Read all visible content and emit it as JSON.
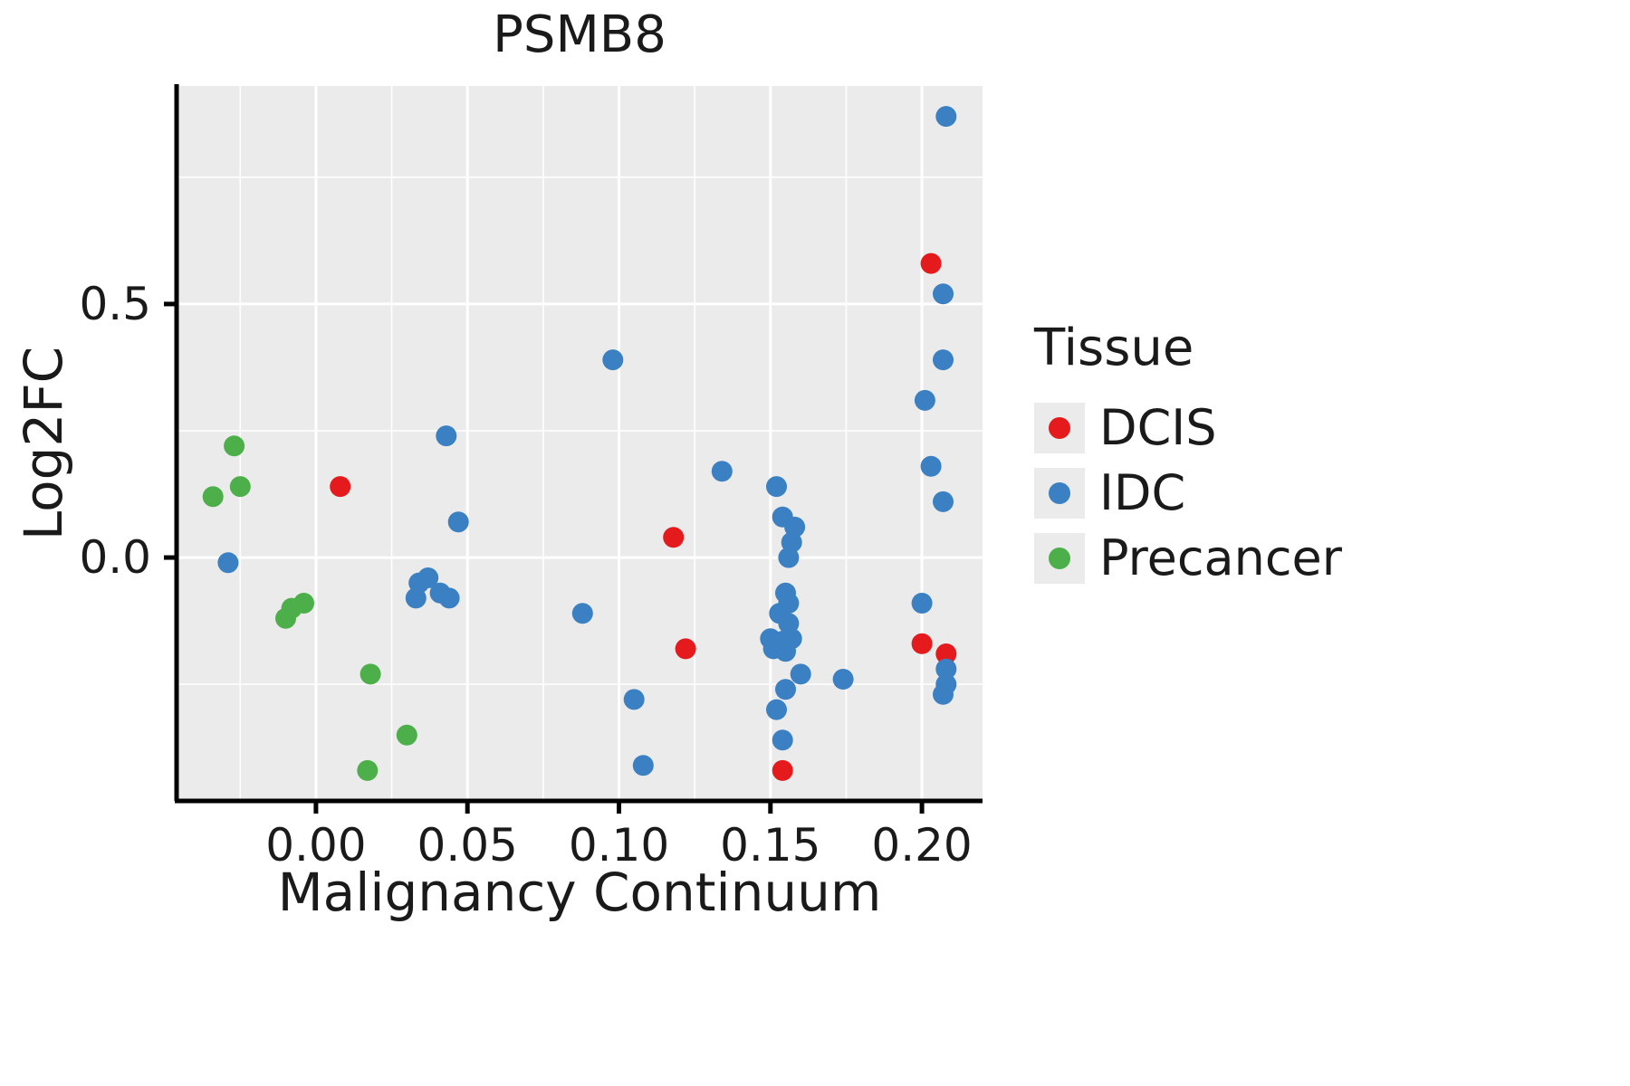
{
  "chart_data": {
    "type": "scatter",
    "title": "PSMB8",
    "xlabel": "Malignancy Continuum",
    "ylabel": "Log2FC",
    "xlim": [
      -0.046,
      0.22
    ],
    "ylim": [
      -0.48,
      0.93
    ],
    "x_ticks": [
      0.0,
      0.05,
      0.1,
      0.15,
      0.2
    ],
    "x_tick_labels": [
      "0.00",
      "0.05",
      "0.10",
      "0.15",
      "0.20"
    ],
    "x_minor_ticks": [
      -0.025,
      0.025,
      0.075,
      0.125,
      0.175
    ],
    "y_ticks": [
      0.0,
      0.5
    ],
    "y_tick_labels": [
      "0.0",
      "0.5"
    ],
    "y_minor_ticks": [
      -0.25,
      0.25,
      0.75
    ],
    "grid": true,
    "panel_background": "#ebebeb",
    "grid_color": "#ffffff",
    "axis_color": "#000000",
    "legend": {
      "title": "Tissue",
      "position": "right"
    },
    "series": [
      {
        "name": "DCIS",
        "color": "#e41a1c",
        "points": [
          [
            0.008,
            0.14
          ],
          [
            0.118,
            0.04
          ],
          [
            0.122,
            -0.18
          ],
          [
            0.154,
            -0.42
          ],
          [
            0.203,
            0.58
          ],
          [
            0.2,
            -0.17
          ],
          [
            0.208,
            -0.19
          ]
        ]
      },
      {
        "name": "IDC",
        "color": "#3a80c2",
        "points": [
          [
            -0.029,
            -0.01
          ],
          [
            0.043,
            0.24
          ],
          [
            0.047,
            0.07
          ],
          [
            0.033,
            -0.08
          ],
          [
            0.034,
            -0.05
          ],
          [
            0.037,
            -0.04
          ],
          [
            0.041,
            -0.07
          ],
          [
            0.044,
            -0.08
          ],
          [
            0.088,
            -0.11
          ],
          [
            0.098,
            0.39
          ],
          [
            0.105,
            -0.28
          ],
          [
            0.108,
            -0.41
          ],
          [
            0.134,
            0.17
          ],
          [
            0.152,
            0.14
          ],
          [
            0.154,
            0.08
          ],
          [
            0.158,
            0.06
          ],
          [
            0.157,
            0.03
          ],
          [
            0.156,
            0.0
          ],
          [
            0.155,
            -0.07
          ],
          [
            0.156,
            -0.09
          ],
          [
            0.153,
            -0.11
          ],
          [
            0.156,
            -0.13
          ],
          [
            0.15,
            -0.16
          ],
          [
            0.154,
            -0.165
          ],
          [
            0.157,
            -0.16
          ],
          [
            0.151,
            -0.18
          ],
          [
            0.155,
            -0.185
          ],
          [
            0.16,
            -0.23
          ],
          [
            0.155,
            -0.26
          ],
          [
            0.152,
            -0.3
          ],
          [
            0.154,
            -0.36
          ],
          [
            0.174,
            -0.24
          ],
          [
            0.208,
            0.87
          ],
          [
            0.207,
            0.52
          ],
          [
            0.207,
            0.39
          ],
          [
            0.201,
            0.31
          ],
          [
            0.203,
            0.18
          ],
          [
            0.207,
            0.11
          ],
          [
            0.2,
            -0.09
          ],
          [
            0.208,
            -0.22
          ],
          [
            0.208,
            -0.25
          ],
          [
            0.207,
            -0.27
          ]
        ]
      },
      {
        "name": "Precancer",
        "color": "#4daf4a",
        "points": [
          [
            -0.034,
            0.12
          ],
          [
            -0.027,
            0.22
          ],
          [
            -0.025,
            0.14
          ],
          [
            -0.01,
            -0.12
          ],
          [
            -0.008,
            -0.1
          ],
          [
            -0.004,
            -0.09
          ],
          [
            0.018,
            -0.23
          ],
          [
            0.03,
            -0.35
          ],
          [
            0.017,
            -0.42
          ]
        ]
      }
    ]
  }
}
